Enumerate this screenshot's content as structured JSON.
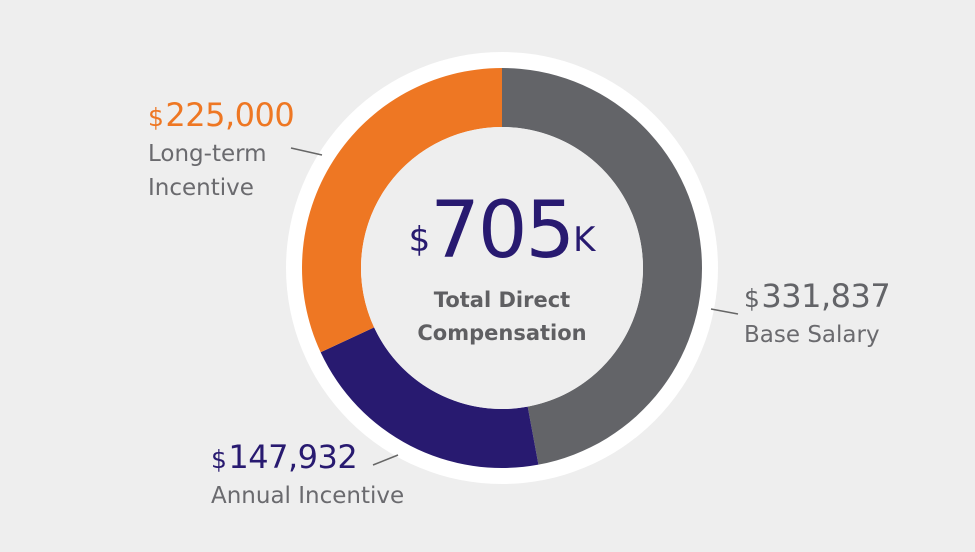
{
  "chart_data": {
    "type": "pie",
    "style": "donut",
    "title": "Total Direct Compensation",
    "total": {
      "currency": "$",
      "value": "705",
      "suffix": "K"
    },
    "center_label_lines": [
      "Total Direct",
      "Compensation"
    ],
    "series": [
      {
        "name": "Base Salary",
        "value": 331837,
        "display": "331,837",
        "label_lines": [
          "Base Salary"
        ],
        "color": "#636468"
      },
      {
        "name": "Annual Incentive",
        "value": 147932,
        "display": "147,932",
        "label_lines": [
          "Annual Incentive"
        ],
        "color": "#281a70"
      },
      {
        "name": "Long-term Incentive",
        "value": 225000,
        "display": "225,000",
        "label_lines": [
          "Long-term",
          "Incentive"
        ],
        "color": "#ee7723"
      }
    ]
  },
  "colors": {
    "background": "#eeeeee",
    "ring": "#ffffff",
    "total_text": "#281a70",
    "label_text": "#6a6a6e",
    "leader_line": "#666666"
  }
}
